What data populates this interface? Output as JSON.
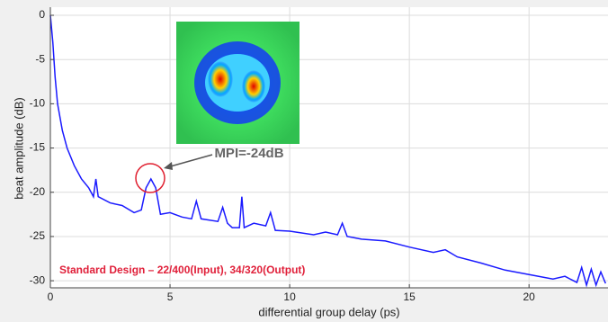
{
  "chart_data": {
    "type": "line",
    "xlabel": "differential group delay (ps)",
    "ylabel": "beat amplitude (dB)",
    "annotations": [
      "MPI=-24dB",
      "Standard Design – 22/400(Input), 34/320(Output)"
    ],
    "x": [
      0,
      0.1,
      0.2,
      0.3,
      0.5,
      0.7,
      1.0,
      1.3,
      1.6,
      1.8,
      1.9,
      2.0,
      2.5,
      3.0,
      3.5,
      3.8,
      4.0,
      4.2,
      4.4,
      4.6,
      5.0,
      5.5,
      5.9,
      6.1,
      6.3,
      7.0,
      7.2,
      7.4,
      7.6,
      7.9,
      8.0,
      8.1,
      8.5,
      9.0,
      9.2,
      9.4,
      10,
      11,
      11.5,
      12.0,
      12.2,
      12.4,
      13,
      14,
      15,
      16,
      16.5,
      17,
      18,
      19,
      20,
      21,
      21.5,
      22,
      22.2,
      22.4,
      22.6,
      22.8,
      23,
      23.2
    ],
    "values": [
      0,
      -3,
      -7,
      -10,
      -13,
      -15,
      -17,
      -18.5,
      -19.5,
      -20.5,
      -18.5,
      -20.5,
      -21.2,
      -21.5,
      -22.3,
      -22,
      -19.5,
      -18.5,
      -19.5,
      -22.5,
      -22.3,
      -22.8,
      -23,
      -21,
      -23,
      -23.3,
      -21.7,
      -23.5,
      -24,
      -24,
      -20.5,
      -24,
      -23.5,
      -23.8,
      -22.3,
      -24.3,
      -24.4,
      -24.8,
      -24.5,
      -24.8,
      -23.5,
      -25,
      -25.3,
      -25.5,
      -26.2,
      -26.8,
      -26.5,
      -27.3,
      -28,
      -28.8,
      -29.3,
      -29.8,
      -29.5,
      -30.2,
      -28.5,
      -30.5,
      -28.7,
      -30.5,
      -29,
      -30.3
    ],
    "color": "#1a1aff",
    "xlim": [
      0,
      23.3
    ],
    "ylim": [
      -30.8,
      0
    ],
    "xticks": [
      0,
      5,
      10,
      15,
      20
    ],
    "yticks": [
      0,
      -5,
      -10,
      -15,
      -20,
      -25,
      -30
    ],
    "grid": true
  }
}
